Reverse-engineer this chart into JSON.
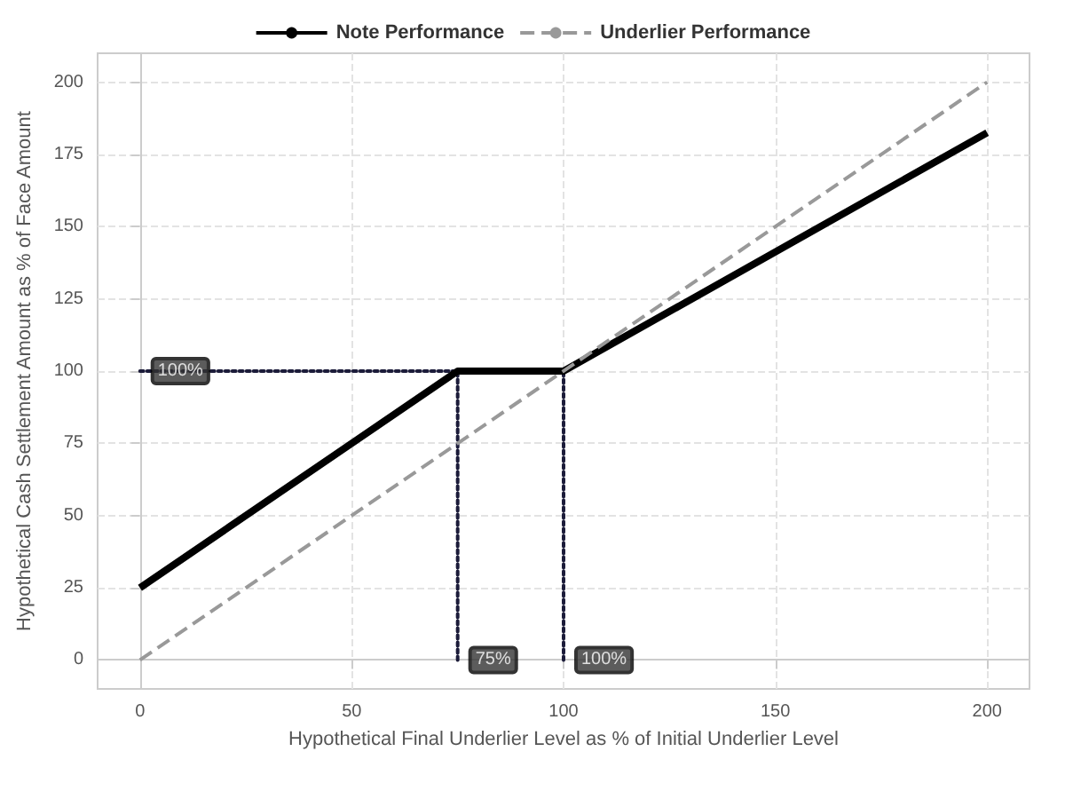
{
  "chart_data": {
    "type": "line",
    "xlabel": "Hypothetical Final Underlier Level as % of Initial Underlier Level",
    "ylabel": "Hypothetical Cash Settlement Amount as % of Face Amount",
    "xlim": [
      -10,
      210
    ],
    "xticks": [
      0,
      50,
      100,
      150,
      200
    ],
    "ylim": [
      -10,
      210
    ],
    "yticks": [
      0,
      25,
      50,
      75,
      100,
      125,
      150,
      175,
      200
    ],
    "grid": true,
    "legend": "top",
    "marker": "none",
    "series": [
      {
        "name": "Note Performance",
        "color": "#000000",
        "line_style": "solid",
        "x": [
          0,
          75,
          100,
          200
        ],
        "values": [
          25,
          100,
          100,
          182.5
        ]
      },
      {
        "name": "Underlier Performance",
        "color": "#999999",
        "line_style": "dashed",
        "x": [
          0,
          200
        ],
        "values": [
          0,
          200
        ]
      },
      {
        "color": "#1c1c3a",
        "line_style": "dotted",
        "x": [
          0,
          75
        ],
        "values": [
          100,
          100
        ]
      },
      {
        "color": "#1c1c3a",
        "line_style": "dotted",
        "x": [
          75,
          75
        ],
        "values": [
          0,
          100
        ]
      },
      {
        "color": "#1c1c3a",
        "line_style": "dotted",
        "x": [
          100,
          100
        ],
        "values": [
          0,
          100
        ]
      }
    ],
    "annotations": [
      {
        "text": "100%",
        "x": 0,
        "y": 100
      },
      {
        "text": "75%",
        "x": 75,
        "y": 0
      },
      {
        "text": "100%",
        "x": 100,
        "y": 0
      }
    ]
  }
}
